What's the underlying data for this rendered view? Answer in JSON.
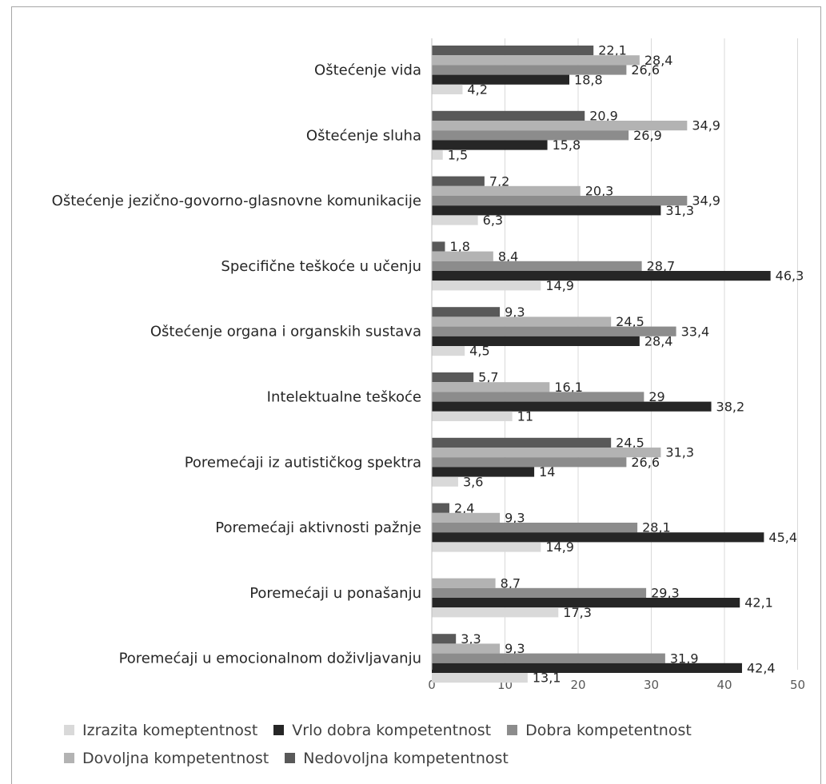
{
  "chart_data": {
    "type": "bar",
    "orientation": "horizontal",
    "categories": [
      "Oštećenje vida",
      "Oštećenje sluha",
      "Oštećenje jezično-govorno-glasnovne komunikacije",
      "Specifične teškoće u učenju",
      "Oštećenje organa i organskih sustava",
      "Intelektualne teškoće",
      "Poremećaji iz autističkog spektra",
      "Poremećaji aktivnosti pažnje",
      "Poremećaji u ponašanju",
      "Poremećaji u emocionalnom doživljavanju"
    ],
    "series": [
      {
        "name": "Izrazita komeptentnost",
        "color": "#d9d9d9",
        "values": [
          4.2,
          1.5,
          6.3,
          14.9,
          4.5,
          11,
          3.6,
          14.9,
          17.3,
          13.1
        ],
        "labels": [
          "4,2",
          "1,5",
          "6,3",
          "14,9",
          "4,5",
          "11",
          "3,6",
          "14,9",
          "17,3",
          "13,1"
        ]
      },
      {
        "name": "Vrlo dobra kompetentnost",
        "color": "#262626",
        "values": [
          18.8,
          15.8,
          31.3,
          46.3,
          28.4,
          38.2,
          14,
          45.4,
          42.1,
          42.4
        ],
        "labels": [
          "18,8",
          "15,8",
          "31,3",
          "46,3",
          "28,4",
          "38,2",
          "14",
          "45,4",
          "42,1",
          "42,4"
        ]
      },
      {
        "name": "Dobra kompetentnost",
        "color": "#8c8c8c",
        "values": [
          26.6,
          26.9,
          34.9,
          28.7,
          33.4,
          29,
          26.6,
          28.1,
          29.3,
          31.9
        ],
        "labels": [
          "26,6",
          "26,9",
          "34,9",
          "28,7",
          "33,4",
          "29",
          "26,6",
          "28,1",
          "29,3",
          "31,9"
        ]
      },
      {
        "name": "Dovoljna kompetentnost",
        "color": "#b3b3b3",
        "values": [
          28.4,
          34.9,
          20.3,
          8.4,
          24.5,
          16.1,
          31.3,
          9.3,
          8.7,
          9.3
        ],
        "labels": [
          "28,4",
          "34,9",
          "20,3",
          "8,4",
          "24,5",
          "16,1",
          "31,3",
          "9,3",
          "8,7",
          "9,3"
        ]
      },
      {
        "name": "Nedovoljna kompetentnost",
        "color": "#595959",
        "values": [
          22.1,
          20.9,
          7.2,
          1.8,
          9.3,
          5.7,
          24.5,
          2.4,
          null,
          3.3
        ],
        "labels": [
          "22,1",
          "20,9",
          "7,2",
          "1,8",
          "9,3",
          "5,7",
          "24,5",
          "2,4",
          "",
          "3,3"
        ]
      }
    ],
    "xlim": [
      0,
      50
    ],
    "xticks": [
      "0",
      "10",
      "20",
      "30",
      "40",
      "50"
    ],
    "grid": true,
    "legend_position": "bottom"
  }
}
